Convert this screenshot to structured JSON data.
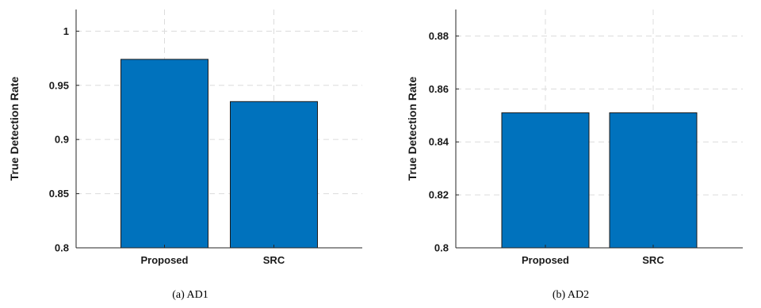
{
  "chart_data": [
    {
      "type": "bar",
      "categories": [
        "Proposed",
        "SRC"
      ],
      "values": [
        0.974,
        0.935
      ],
      "xlabel": "",
      "ylabel": "True Detection Rate",
      "ylim": [
        0.8,
        1.02
      ],
      "yticks": [
        0.8,
        0.85,
        0.9,
        0.95,
        1
      ],
      "ytick_labels": [
        "0.8",
        "0.85",
        "0.9",
        "0.95",
        "1"
      ],
      "caption": "(a)  AD1",
      "grid": true,
      "bar_color": "#0072bd"
    },
    {
      "type": "bar",
      "categories": [
        "Proposed",
        "SRC"
      ],
      "values": [
        0.851,
        0.851
      ],
      "xlabel": "",
      "ylabel": "True Detection Rate",
      "ylim": [
        0.8,
        0.89
      ],
      "yticks": [
        0.8,
        0.82,
        0.84,
        0.86,
        0.88
      ],
      "ytick_labels": [
        "0.8",
        "0.82",
        "0.84",
        "0.86",
        "0.88"
      ],
      "caption": "(b)  AD2",
      "grid": true,
      "bar_color": "#0072bd"
    }
  ]
}
